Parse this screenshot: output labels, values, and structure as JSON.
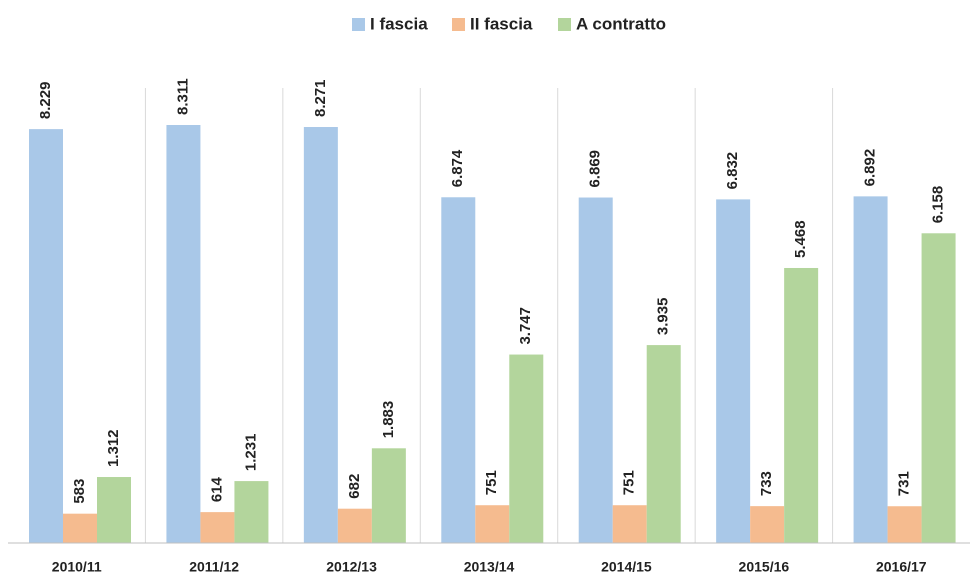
{
  "chart_data": {
    "type": "bar",
    "categories": [
      "2010/11",
      "2011/12",
      "2012/13",
      "2013/14",
      "2014/15",
      "2015/16",
      "2016/17"
    ],
    "series": [
      {
        "name": "I fascia",
        "color": "#a9c8e8",
        "values": [
          8229,
          8311,
          8271,
          6874,
          6869,
          6832,
          6892
        ],
        "value_labels": [
          "8.229",
          "8.311",
          "8.271",
          "6.874",
          "6.869",
          "6.832",
          "6.892"
        ]
      },
      {
        "name": "II fascia",
        "color": "#f5bb8f",
        "values": [
          583,
          614,
          682,
          751,
          751,
          733,
          731
        ]
      },
      {
        "name": "A contratto",
        "color": "#b3d59c",
        "values": [
          1312,
          1231,
          1883,
          3747,
          3935,
          5468,
          6158
        ],
        "value_labels": [
          "1.312",
          "1.231",
          "1.883",
          "3.747",
          "3.935",
          "5.468",
          "6.158"
        ]
      }
    ],
    "legend": "top"
  }
}
